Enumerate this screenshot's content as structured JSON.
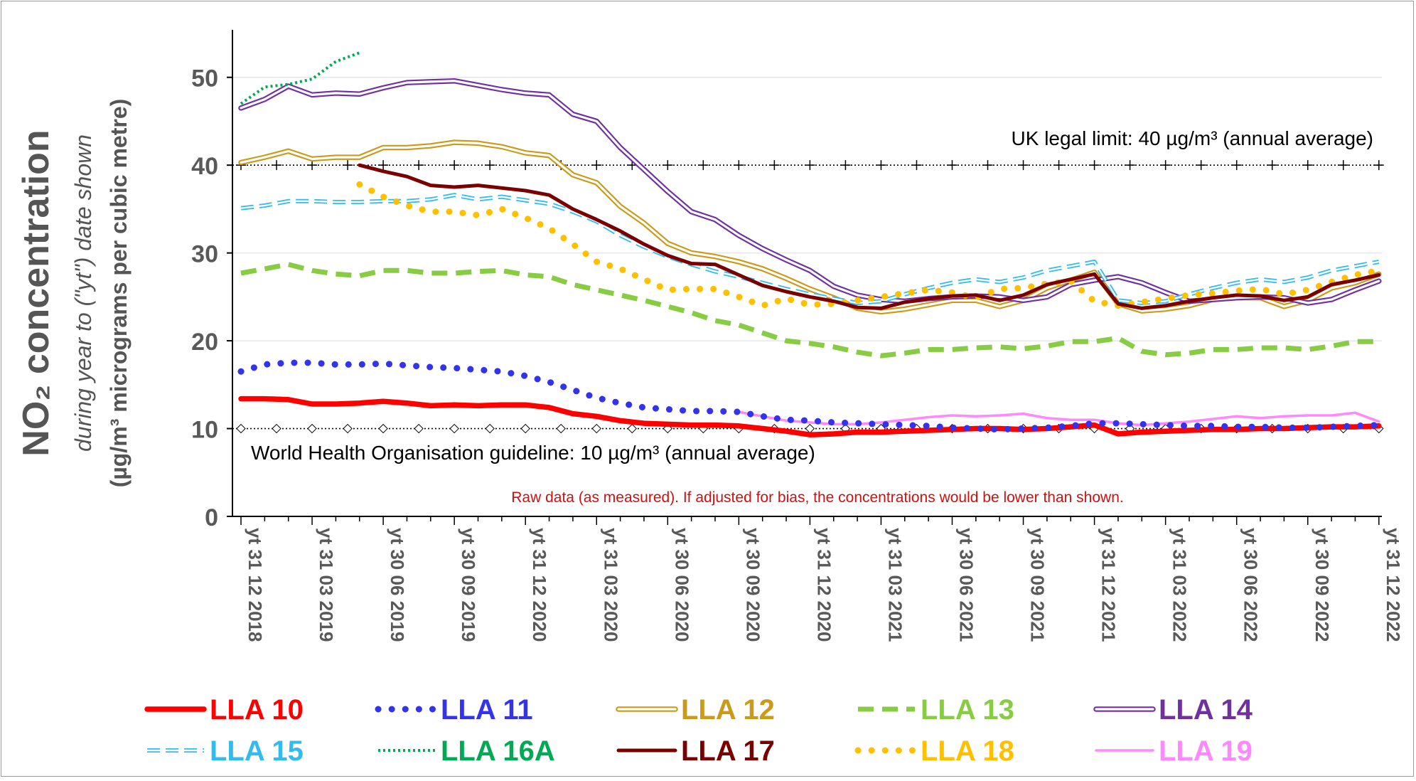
{
  "chart_data": {
    "type": "line",
    "ylabel_main": "NO₂ concentration",
    "ylabel_italic": "during year to (\"yt\") date shown",
    "ylabel_units": "(µg/m³ micrograms per cubic metre)",
    "ylim": [
      0,
      55
    ],
    "yticks": [
      0,
      10,
      20,
      30,
      40,
      50
    ],
    "grid": "horizontal",
    "legend_position": "bottom",
    "x_tick_labels": [
      "yt 31 12 2018",
      "yt 31 03 2019",
      "yt 30 06 2019",
      "yt 30 09 2019",
      "yt 31 12 2020",
      "yt 31 03 2020",
      "yt 30 06 2020",
      "yt 30 09 2020",
      "yt 31 12 2020",
      "yt 31 03 2021",
      "yt 30 06 2021",
      "yt 30 09 2021",
      "yt 31 12 2021",
      "yt 31 03 2022",
      "yt 30 06 2022",
      "yt 30 09 2022",
      "yt 31 12 2022"
    ],
    "x_count": 49,
    "annotations": {
      "uk_limit": "UK legal limit:  40 µg/m³  (annual average)",
      "who_guideline": "World Health Organisation guideline:  10 µg/m³  (annual average)",
      "raw_note": "Raw data (as measured).  If adjusted for bias, the concentrations would be lower than shown."
    },
    "reference_lines": [
      {
        "value": 40,
        "marker": "plus"
      },
      {
        "value": 10,
        "marker": "diamond"
      }
    ],
    "series": [
      {
        "name": "LLA 10",
        "color": "#ff0000",
        "style": "thick",
        "start": 0,
        "values": [
          13.4,
          13.4,
          13.3,
          12.8,
          12.8,
          12.9,
          13.1,
          12.9,
          12.6,
          12.7,
          12.6,
          12.7,
          12.7,
          12.4,
          11.7,
          11.4,
          10.9,
          10.6,
          10.5,
          10.4,
          10.4,
          10.3,
          10.0,
          9.7,
          9.3,
          9.4,
          9.6,
          9.6,
          9.7,
          9.8,
          9.9,
          10.0,
          10.0,
          9.9,
          10.0,
          10.2,
          10.4,
          9.4,
          9.6,
          9.7,
          9.8,
          9.9,
          9.9,
          10.0,
          10.0,
          10.1,
          10.2,
          10.2,
          10.3
        ]
      },
      {
        "name": "LLA 11",
        "color": "#3333ee",
        "style": "dots",
        "start": 0,
        "values": [
          16.5,
          17.3,
          17.5,
          17.5,
          17.3,
          17.3,
          17.4,
          17.2,
          17.0,
          16.9,
          16.7,
          16.5,
          16.0,
          15.3,
          14.4,
          13.5,
          12.9,
          12.4,
          12.2,
          12.0,
          12.0,
          11.9,
          11.4,
          11.0,
          10.9,
          10.7,
          10.6,
          10.5,
          10.4,
          10.3,
          10.1,
          10.0,
          9.9,
          10.0,
          10.1,
          10.3,
          10.6,
          10.6,
          10.5,
          10.4,
          10.3,
          10.3,
          10.2,
          10.2,
          10.1,
          10.1,
          10.2,
          10.3,
          10.4
        ]
      },
      {
        "name": "LLA 12",
        "color": "#cc9a1a",
        "style": "double",
        "start": 0,
        "values": [
          40.3,
          40.9,
          41.6,
          40.7,
          40.9,
          40.9,
          42.0,
          42.0,
          42.2,
          42.6,
          42.5,
          42.1,
          41.4,
          41.1,
          38.9,
          38.0,
          35.3,
          33.4,
          31.1,
          30.0,
          29.6,
          29.0,
          28.2,
          27.1,
          25.9,
          24.9,
          23.7,
          23.3,
          23.6,
          24.1,
          24.6,
          24.6,
          23.9,
          24.6,
          26.0,
          26.9,
          27.8,
          24.2,
          23.4,
          23.6,
          24.0,
          24.7,
          24.9,
          24.9,
          23.9,
          24.6,
          26.0,
          26.6,
          27.6
        ]
      },
      {
        "name": "LLA 13",
        "color": "#88cc44",
        "style": "dashed",
        "start": 0,
        "values": [
          27.7,
          28.2,
          28.7,
          28.0,
          27.6,
          27.4,
          28.0,
          28.0,
          27.7,
          27.7,
          27.9,
          28.0,
          27.5,
          27.3,
          26.4,
          25.8,
          25.2,
          24.6,
          23.9,
          23.2,
          22.3,
          21.8,
          20.9,
          20.0,
          19.7,
          19.3,
          18.7,
          18.3,
          18.6,
          19.0,
          19.0,
          19.2,
          19.3,
          19.1,
          19.4,
          19.9,
          19.9,
          20.3,
          18.8,
          18.4,
          18.6,
          19.0,
          19.0,
          19.2,
          19.2,
          19.0,
          19.4,
          19.9,
          19.9
        ]
      },
      {
        "name": "LLA 14",
        "color": "#7030a0",
        "style": "double",
        "start": 0,
        "values": [
          46.5,
          47.5,
          49.0,
          48.0,
          48.2,
          48.1,
          48.8,
          49.4,
          49.5,
          49.6,
          49.1,
          48.6,
          48.2,
          48.0,
          45.8,
          45.0,
          42.0,
          39.5,
          37.0,
          34.7,
          33.8,
          32.0,
          30.5,
          29.2,
          28.0,
          26.2,
          25.2,
          24.7,
          24.5,
          24.8,
          25.0,
          25.1,
          25.0,
          24.6,
          25.0,
          26.4,
          26.9,
          27.3,
          26.6,
          25.5,
          24.5,
          24.7,
          24.9,
          25.0,
          24.9,
          24.3,
          24.7,
          25.8,
          26.8
        ]
      },
      {
        "name": "LLA 15",
        "color": "#33bbee",
        "style": "dashedhollow",
        "start": 0,
        "values": [
          35.1,
          35.4,
          35.9,
          35.9,
          35.8,
          35.8,
          35.9,
          35.9,
          36.1,
          36.6,
          36.1,
          36.4,
          36.0,
          35.6,
          34.7,
          33.6,
          32.0,
          30.7,
          29.6,
          28.7,
          27.9,
          27.3,
          26.6,
          25.9,
          25.3,
          24.8,
          24.3,
          24.5,
          25.3,
          26.0,
          26.6,
          27.0,
          26.7,
          27.2,
          28.0,
          28.5,
          29.0,
          24.6,
          24.3,
          24.5,
          25.3,
          26.0,
          26.6,
          27.0,
          26.7,
          27.2,
          28.0,
          28.5,
          29.0
        ]
      },
      {
        "name": "LLA 16A",
        "color": "#00aa55",
        "style": "fine",
        "start": 0,
        "values": [
          47.0,
          48.9,
          49.2,
          49.8,
          51.8,
          52.8
        ]
      },
      {
        "name": "LLA 17",
        "color": "#7a0000",
        "style": "solid",
        "start": 5,
        "values": [
          40.0,
          39.3,
          38.7,
          37.7,
          37.5,
          37.7,
          37.4,
          37.1,
          36.6,
          35.0,
          33.8,
          32.5,
          31.0,
          29.7,
          28.8,
          28.7,
          27.5,
          26.3,
          25.6,
          25.0,
          24.5,
          23.8,
          23.7,
          24.4,
          24.8,
          25.1,
          25.2,
          24.6,
          25.2,
          26.4,
          27.0,
          27.6,
          24.2,
          23.7,
          24.0,
          24.5,
          24.9,
          25.2,
          25.1,
          24.6,
          25.0,
          26.4,
          26.9,
          27.5
        ]
      },
      {
        "name": "LLA 18",
        "color": "#ffc000",
        "style": "dots",
        "start": 5,
        "values": [
          37.8,
          36.4,
          35.4,
          34.7,
          34.7,
          34.3,
          35.0,
          34.0,
          32.8,
          31.0,
          29.0,
          28.2,
          27.0,
          25.8,
          25.9,
          25.9,
          25.0,
          24.0,
          24.8,
          24.1,
          24.2,
          24.6,
          25.0,
          25.4,
          25.8,
          25.5,
          24.9,
          25.9,
          26.0,
          26.5,
          26.8,
          24.5,
          24.0,
          24.4,
          24.8,
          25.2,
          25.4,
          25.7,
          25.9,
          25.3,
          25.8,
          26.7,
          27.5,
          28.0
        ]
      },
      {
        "name": "LLA 19",
        "color": "#ff88ff",
        "style": "solid",
        "start": 21,
        "values": [
          11.9,
          11.4,
          10.9,
          10.7,
          10.5,
          10.5,
          10.7,
          11.0,
          11.3,
          11.5,
          11.4,
          11.5,
          11.7,
          11.2,
          11.0,
          11.0,
          10.6,
          10.4,
          10.6,
          10.8,
          11.1,
          11.4,
          11.2,
          11.4,
          11.5,
          11.5,
          11.8,
          10.8
        ]
      }
    ]
  }
}
